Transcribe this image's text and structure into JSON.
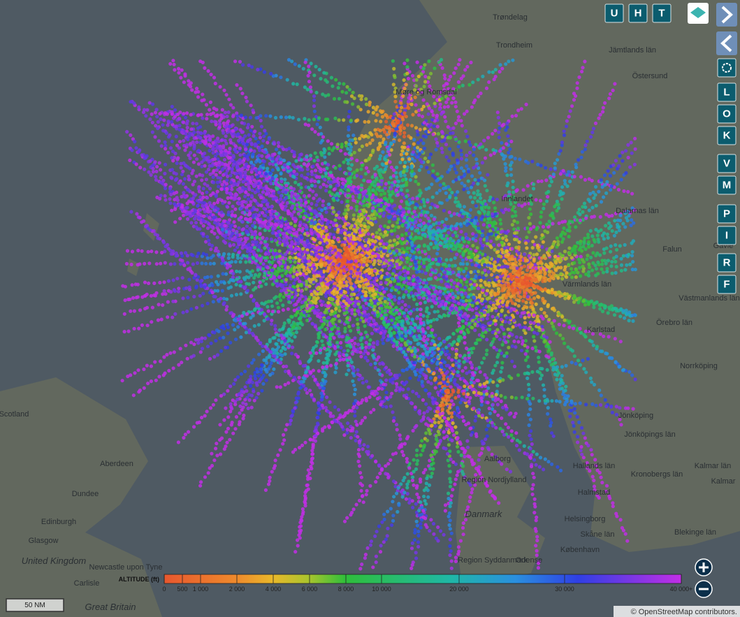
{
  "top_buttons": [
    "U",
    "H",
    "T"
  ],
  "side_buttons": [
    "L",
    "O",
    "K",
    "V",
    "M",
    "P",
    "I",
    "R",
    "F"
  ],
  "legend": {
    "title": "ALTITUDE (ft)",
    "ticks": [
      "0",
      "500",
      "1 000",
      "2 000",
      "4 000",
      "6 000",
      "8 000",
      "10 000",
      "20 000",
      "30 000",
      "40 000+"
    ]
  },
  "scale": "50 NM",
  "attribution": "© OpenStreetMap contributors.",
  "places": [
    "Trøndelag",
    "Trondheim",
    "Jämtlands län",
    "Östersund",
    "Møre og Romsdal",
    "Innlandet",
    "Dalarnas län",
    "Falun",
    "Gävle",
    "Värmlands län",
    "Karlstad",
    "Västmanlands län",
    "Örebro län",
    "Norrköping",
    "Jönköping",
    "Jönköpings län",
    "Kronobergs län",
    "Kalmar län",
    "Kalmar",
    "Hallands län",
    "Halmstad",
    "Aalborg",
    "Region Nordjylland",
    "Danmark",
    "Helsingborg",
    "Skåne län",
    "Blekinge län",
    "København",
    "Odense",
    "Region Syddanmark",
    "Scotland",
    "Aberdeen",
    "Dundee",
    "Edinburgh",
    "Glasgow",
    "United Kingdom",
    "Newcastle upon Tyne",
    "Carlisle",
    "Great Britain"
  ]
}
